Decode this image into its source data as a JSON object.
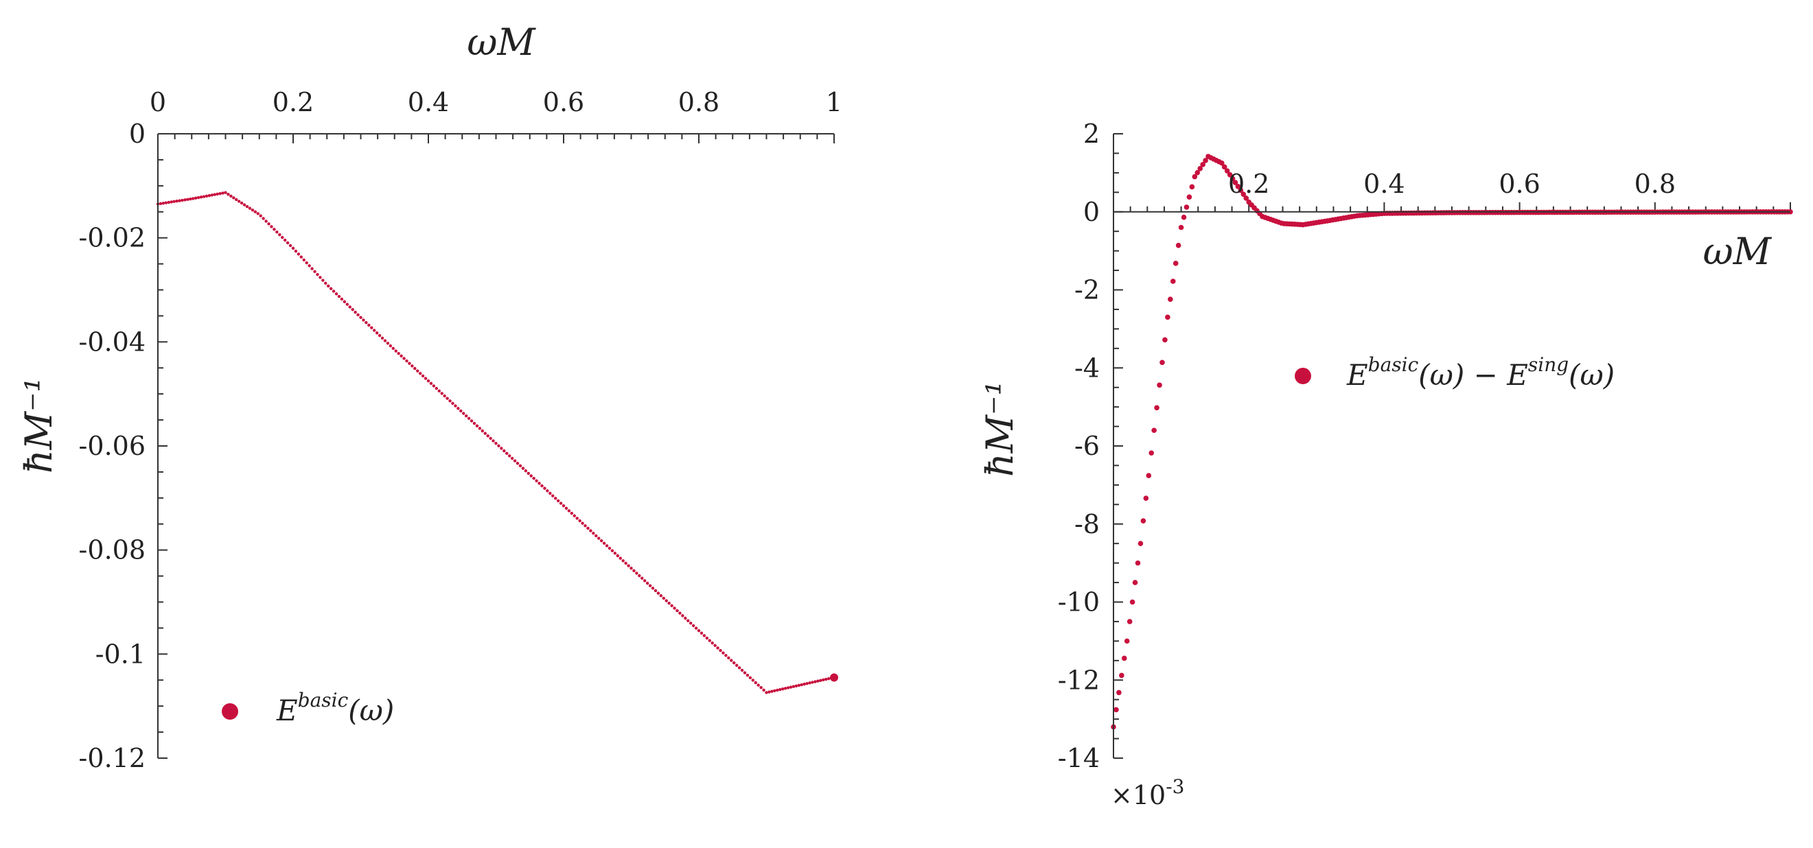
{
  "colors": {
    "series": "#c8103e",
    "axis": "#333333",
    "text": "#222222"
  },
  "chart_data": [
    {
      "type": "scatter",
      "title": "",
      "xlabel": "ωM",
      "ylabel": "ħM⁻¹",
      "xlim": [
        0,
        1
      ],
      "ylim": [
        -0.12,
        0
      ],
      "x_axis_position": "top",
      "x_ticks": [
        0,
        0.2,
        0.4,
        0.6,
        0.8,
        1
      ],
      "x_tick_labels": [
        "0",
        "0.2",
        "0.4",
        "0.6",
        "0.8",
        "1"
      ],
      "y_ticks": [
        0,
        -0.02,
        -0.04,
        -0.06,
        -0.08,
        -0.1,
        -0.12
      ],
      "y_tick_labels": [
        "0",
        "-0.02",
        "-0.04",
        "-0.06",
        "-0.08",
        "-0.1",
        "-0.12"
      ],
      "legend": {
        "placement": "bottom-left",
        "base": "E",
        "sup": "basic",
        "arg": "(ω)"
      },
      "series": [
        {
          "sample_step": 0.004,
          "curve_points": [
            [
              0,
              -0.0135
            ],
            [
              0.05,
              -0.0125
            ],
            [
              0.1,
              -0.0113
            ],
            [
              0.15,
              -0.0155
            ],
            [
              0.2,
              -0.022
            ],
            [
              0.25,
              -0.029
            ],
            [
              0.3,
              -0.0353
            ],
            [
              0.35,
              -0.0415
            ],
            [
              0.4,
              -0.0475
            ],
            [
              0.5,
              -0.0595
            ],
            [
              0.6,
              -0.0715
            ],
            [
              0.7,
              -0.0835
            ],
            [
              0.8,
              -0.0955
            ],
            [
              0.9,
              -0.1074
            ],
            [
              1.0,
              -0.1045
            ]
          ],
          "highlight_point": [
            1.0,
            -0.1045
          ]
        }
      ]
    },
    {
      "type": "scatter",
      "title": "",
      "xlabel": "ωM",
      "ylabel": "ħM⁻¹",
      "xlim": [
        0,
        1
      ],
      "ylim": [
        -14,
        2
      ],
      "multiplier": "×10",
      "multiplier_exp": "-3",
      "x_ticks": [
        0.2,
        0.4,
        0.6,
        0.8
      ],
      "x_tick_labels": [
        "0.2",
        "0.4",
        "0.6",
        "0.8"
      ],
      "y_ticks": [
        2,
        0,
        -2,
        -4,
        -6,
        -8,
        -10,
        -12,
        -14
      ],
      "y_tick_labels": [
        "2",
        "0",
        "-2",
        "-4",
        "-6",
        "-8",
        "-10",
        "-12",
        "-14"
      ],
      "legend": {
        "placement": "upper-right",
        "base1": "E",
        "sup1": "basic",
        "arg1": "(ω) − ",
        "base2": "E",
        "sup2": "sing",
        "arg2": "(ω)"
      },
      "series": [
        {
          "sample_step": 0.004,
          "curve_points": [
            [
              0.0,
              -13.2
            ],
            [
              0.02,
              -11.0
            ],
            [
              0.04,
              -8.5
            ],
            [
              0.06,
              -5.6
            ],
            [
              0.08,
              -2.7
            ],
            [
              0.1,
              -0.4
            ],
            [
              0.12,
              0.9
            ],
            [
              0.14,
              1.42
            ],
            [
              0.16,
              1.25
            ],
            [
              0.18,
              0.75
            ],
            [
              0.2,
              0.25
            ],
            [
              0.22,
              -0.12
            ],
            [
              0.25,
              -0.3
            ],
            [
              0.28,
              -0.33
            ],
            [
              0.32,
              -0.22
            ],
            [
              0.36,
              -0.1
            ],
            [
              0.4,
              -0.04
            ],
            [
              0.5,
              -0.02
            ],
            [
              0.7,
              -0.01
            ],
            [
              1.0,
              0.0
            ]
          ]
        }
      ]
    }
  ]
}
